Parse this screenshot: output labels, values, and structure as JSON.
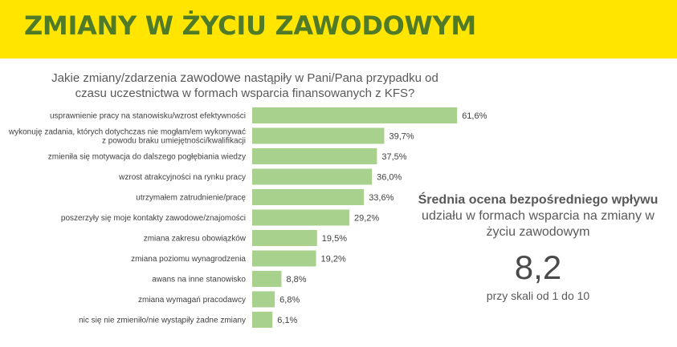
{
  "header": {
    "title": "ZMIANY W ŻYCIU ZAWODOWYM"
  },
  "question": {
    "line1_pre": "Jakie zmiany/zdarzenia ",
    "line1_strong": "zawodowe",
    "line1_post": " nastąpiły w Pani/Pana przypadku od",
    "line2": "czasu uczestnictwa w formach wsparcia finansowanych z KFS?"
  },
  "summary": {
    "title_line1": "Średnia ocena bezpośredniego wpływu",
    "title_line2": "udziału w formach wsparcia na zmiany w",
    "title_line3": "życiu zawodowym",
    "score": "8,2",
    "scale": "przy skali od 1 do 10"
  },
  "colors": {
    "banner": "#ffe500",
    "title": "#4f7a28",
    "bar": "#a9d18e",
    "text": "#595959"
  },
  "chart_data": {
    "type": "bar",
    "orientation": "horizontal",
    "categories": [
      [
        "usprawnienie pracy na stanowisku/wzrost efektywności"
      ],
      [
        "wykonuję zadania, których dotychczas nie mogłam/em wykonywać",
        "z powodu braku umiejętności/kwalifikacji"
      ],
      [
        "zmieniła się motywacja do dalszego pogłębiania wiedzy"
      ],
      [
        "wzrost atrakcyjności na rynku pracy"
      ],
      [
        "utrzymałem zatrudnienie/pracę"
      ],
      [
        "poszerzyły się moje kontakty zawodowe/znajomości"
      ],
      [
        "zmiana zakresu obowiązków"
      ],
      [
        "zmiana poziomu wynagrodzenia"
      ],
      [
        "awans na inne stanowisko"
      ],
      [
        "zmiana wymagań pracodawcy"
      ],
      [
        "nic się nie zmieniło/nie wystąpiły żadne zmiany"
      ]
    ],
    "values": [
      61.6,
      39.7,
      37.5,
      36.0,
      33.6,
      29.2,
      19.5,
      19.2,
      8.8,
      6.8,
      6.1
    ],
    "value_labels": [
      "61,6%",
      "39,7%",
      "37,5%",
      "36,0%",
      "33,6%",
      "29,2%",
      "19,5%",
      "19,2%",
      "8,8%",
      "6,8%",
      "6,1%"
    ],
    "xlim": [
      0,
      70
    ],
    "grid": false,
    "legend": "none"
  }
}
